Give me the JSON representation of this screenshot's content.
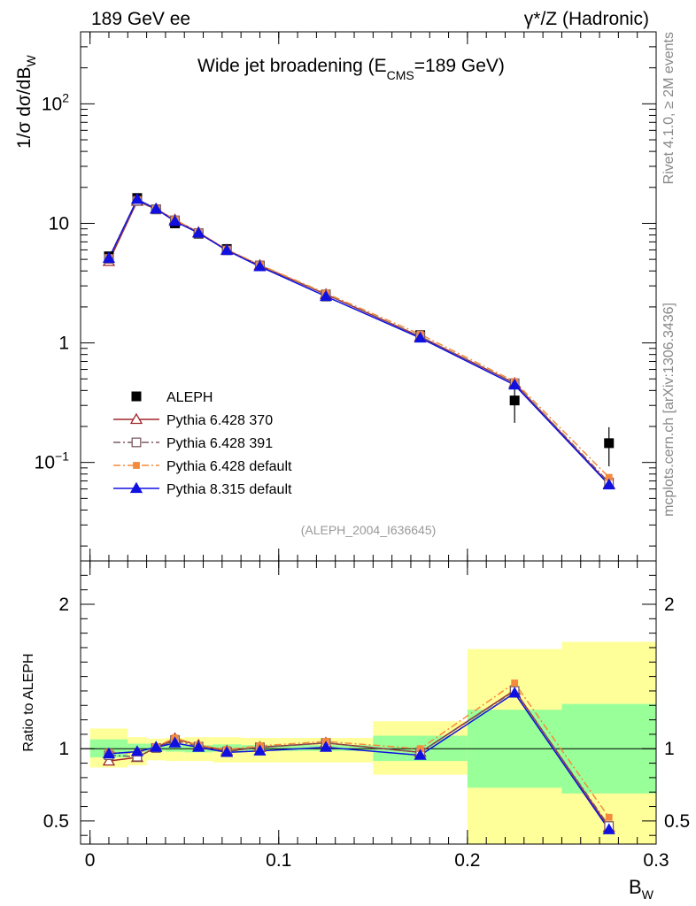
{
  "header": {
    "left": "189 GeV ee",
    "right": "γ*/Z (Hadronic)"
  },
  "side_text": {
    "rivet": "Rivet 4.1.0, ≥ 2M events",
    "mcplots": "mcplots.cern.ch [arXiv:1306.3436]"
  },
  "chart_data": [
    {
      "type": "line",
      "panel": "main",
      "title_main": "Wide jet broadening (E",
      "title_sub": "CMS",
      "title_end": "=189 GeV)",
      "ylabel": "1/σ  dσ/dB",
      "ylabel_sub": "W",
      "yscale": "log",
      "ylim": [
        0.015,
        400
      ],
      "xlim": [
        -0.005,
        0.3
      ],
      "y_tick_labels": [
        {
          "label": "10",
          "sup": "−1",
          "value": 0.1
        },
        {
          "label": "1",
          "sup": "",
          "value": 1
        },
        {
          "label": "10",
          "sup": "",
          "value": 10
        },
        {
          "label": "10",
          "sup": "2",
          "value": 100
        }
      ],
      "analysis_tag": "(ALEPH_2004_I636645)",
      "data": {
        "name": "ALEPH",
        "x": [
          0.01,
          0.025,
          0.035,
          0.045,
          0.0575,
          0.0725,
          0.09,
          0.125,
          0.175,
          0.225,
          0.275
        ],
        "y": [
          5.3,
          16.3,
          13.1,
          10.0,
          8.2,
          6.1,
          4.4,
          2.45,
          1.16,
          0.33,
          0.145
        ],
        "stat_err": [
          0.025,
          0.02,
          0.02,
          0.02,
          0.02,
          0.02,
          0.02,
          0.02,
          0.04,
          0.2,
          0.25
        ],
        "tot_err": [
          0.06,
          0.05,
          0.04,
          0.04,
          0.04,
          0.05,
          0.045,
          0.045,
          0.09,
          0.35,
          0.36
        ]
      },
      "series": [
        {
          "name": "Pythia 6.428 370",
          "color": "#a0262a",
          "dash": "",
          "marker": "triangle-open",
          "y": [
            4.8,
            15.3,
            13.2,
            10.7,
            8.4,
            6.0,
            4.45,
            2.55,
            1.13,
            0.46,
            0.066
          ]
        },
        {
          "name": "Pythia 6.428 391",
          "color": "#7a5a62",
          "dash": "8 3 2 3",
          "marker": "square-open",
          "y": [
            5.05,
            15.4,
            13.1,
            10.6,
            8.3,
            5.95,
            4.45,
            2.55,
            1.13,
            0.46,
            0.068
          ]
        },
        {
          "name": "Pythia 6.428 default",
          "color": "#f58a3c",
          "dash": "8 3 2 3",
          "marker": "square-filled",
          "y": [
            5.15,
            15.8,
            13.3,
            10.75,
            8.4,
            6.05,
            4.5,
            2.6,
            1.18,
            0.475,
            0.075
          ]
        },
        {
          "name": "Pythia 8.315 default",
          "color": "#1010e0",
          "dash": "",
          "marker": "triangle-filled",
          "y": [
            5.1,
            15.9,
            13.2,
            10.4,
            8.3,
            5.95,
            4.35,
            2.45,
            1.1,
            0.445,
            0.065
          ]
        }
      ]
    },
    {
      "type": "line",
      "panel": "ratio",
      "ylabel": "Ratio to ALEPH",
      "xlabel": "B",
      "xlabel_sub": "W",
      "ylim": [
        0.34,
        2.3
      ],
      "xlim": [
        -0.005,
        0.3
      ],
      "x_ticks": [
        0,
        0.1,
        0.2,
        0.3
      ],
      "x_tick_labels": [
        "0",
        "0.1",
        "0.2",
        "0.3"
      ],
      "y_ticks": [
        0.5,
        1,
        2
      ],
      "y_tick_labels": [
        "0.5",
        "1",
        "2"
      ],
      "bins": [
        [
          0.0,
          0.02
        ],
        [
          0.02,
          0.03
        ],
        [
          0.03,
          0.04
        ],
        [
          0.04,
          0.05
        ],
        [
          0.05,
          0.065
        ],
        [
          0.065,
          0.08
        ],
        [
          0.08,
          0.1
        ],
        [
          0.1,
          0.15
        ],
        [
          0.15,
          0.2
        ],
        [
          0.2,
          0.25
        ],
        [
          0.25,
          0.3
        ]
      ],
      "band_stat": [
        0.94,
        1.065,
        0.975,
        1.035,
        0.985,
        1.035,
        0.98,
        1.03,
        0.975,
        1.025,
        0.98,
        1.03,
        0.985,
        1.025,
        0.985,
        1.025,
        0.915,
        1.09,
        0.73,
        1.27,
        0.69,
        1.31
      ],
      "band_tot": [
        0.87,
        1.14,
        0.885,
        1.08,
        0.92,
        1.07,
        0.915,
        1.075,
        0.915,
        1.08,
        0.905,
        1.08,
        0.905,
        1.075,
        0.905,
        1.075,
        0.82,
        1.19,
        0.34,
        1.69,
        0.34,
        1.74
      ],
      "series": [
        {
          "name": "Pythia 6.428 370",
          "y": [
            0.915,
            0.94,
            1.01,
            1.07,
            1.025,
            0.985,
            1.01,
            1.04,
            0.975,
            1.405,
            0.455
          ]
        },
        {
          "name": "Pythia 6.428 391",
          "y": [
            0.955,
            0.945,
            1.005,
            1.06,
            1.015,
            0.98,
            1.01,
            1.04,
            0.975,
            1.4,
            0.465
          ]
        },
        {
          "name": "Pythia 6.428 default",
          "y": [
            0.975,
            0.97,
            1.015,
            1.075,
            1.025,
            0.995,
            1.02,
            1.05,
            1.0,
            1.455,
            0.525
          ]
        },
        {
          "name": "Pythia 8.315 default",
          "y": [
            0.965,
            0.98,
            1.01,
            1.04,
            1.01,
            0.975,
            0.985,
            1.01,
            0.955,
            1.385,
            0.44
          ]
        }
      ]
    }
  ]
}
